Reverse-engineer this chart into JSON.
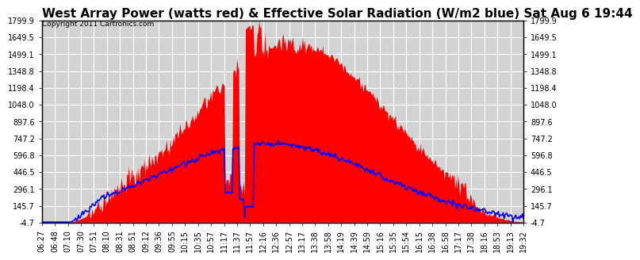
{
  "title": "West Array Power (watts red) & Effective Solar Radiation (W/m2 blue) Sat Aug 6 19:44",
  "copyright": "Copyright 2011 Cartronics.com",
  "background_color": "#ffffff",
  "plot_bg_color": "#d3d3d3",
  "grid_color": "#ffffff",
  "ylim_min": -4.7,
  "ylim_max": 1799.9,
  "yticks": [
    1799.9,
    1649.5,
    1499.1,
    1348.8,
    1198.4,
    1048.0,
    897.6,
    747.2,
    596.8,
    446.5,
    296.1,
    145.7,
    -4.7
  ],
  "fill_color": "red",
  "line_color": "blue",
  "title_fontsize": 11,
  "tick_fontsize": 7,
  "x_labels": [
    "06:27",
    "06:48",
    "07:10",
    "07:30",
    "07:51",
    "08:10",
    "08:31",
    "08:51",
    "09:12",
    "09:36",
    "09:55",
    "10:15",
    "10:35",
    "10:57",
    "11:17",
    "11:37",
    "11:57",
    "12:16",
    "12:36",
    "12:57",
    "13:17",
    "13:38",
    "13:58",
    "14:19",
    "14:39",
    "14:59",
    "15:16",
    "15:35",
    "15:54",
    "16:15",
    "16:38",
    "16:58",
    "17:17",
    "17:38",
    "18:16",
    "18:53",
    "19:13",
    "19:32"
  ]
}
